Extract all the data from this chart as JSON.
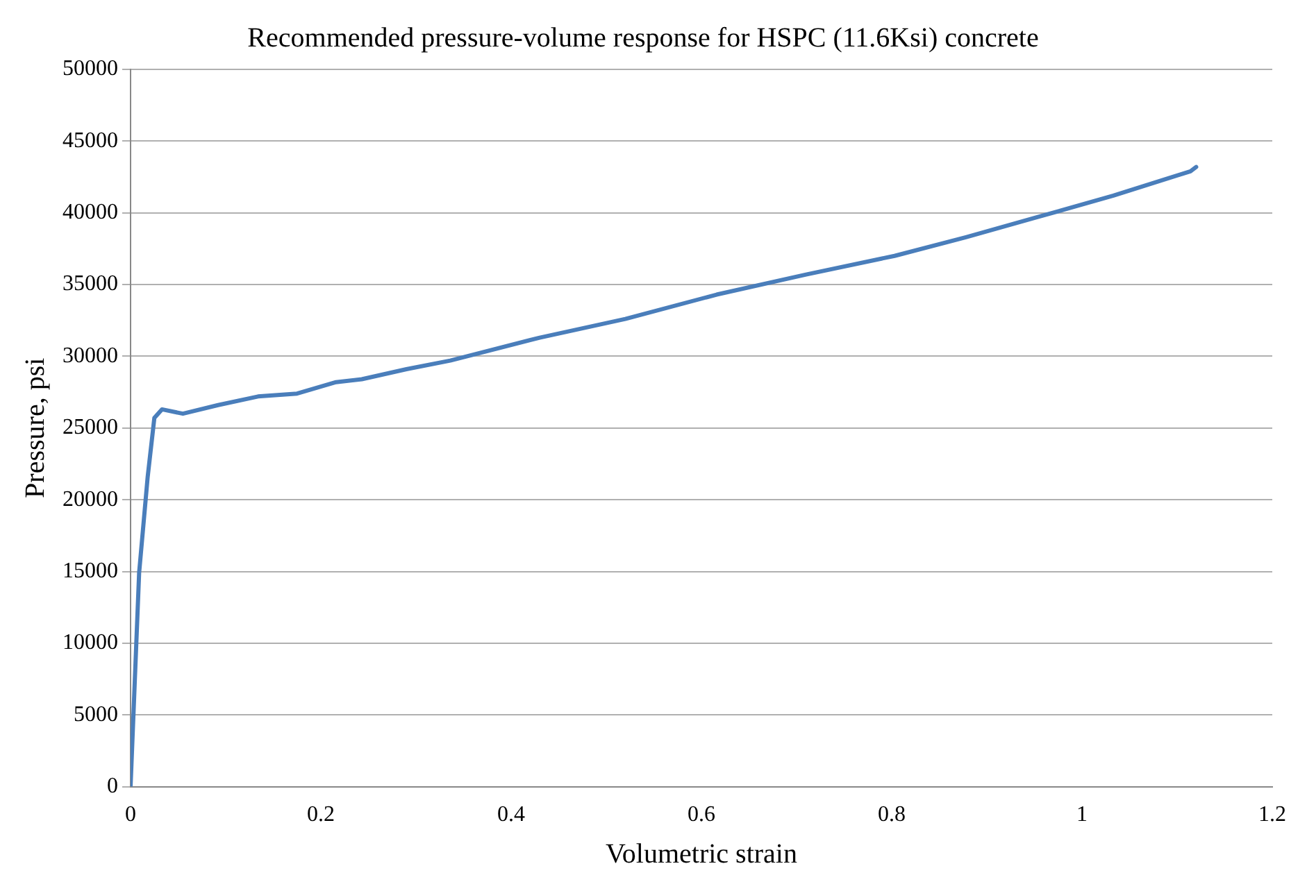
{
  "chart_data": {
    "type": "line",
    "title": "Recommended pressure-volume response for HSPC (11.6Ksi) concrete",
    "xlabel": "Volumetric strain",
    "ylabel": "Pressure, psi",
    "series": [
      {
        "color": "#4a7ebb",
        "x": [
          0,
          0.009,
          0.018,
          0.025,
          0.033,
          0.055,
          0.092,
          0.134,
          0.175,
          0.216,
          0.243,
          0.29,
          0.336,
          0.43,
          0.52,
          0.616,
          0.71,
          0.803,
          0.878,
          0.953,
          1.033,
          1.114,
          1.12
        ],
        "values": [
          0,
          14900,
          21600,
          25700,
          26300,
          26000,
          26600,
          27200,
          27400,
          28200,
          28400,
          29100,
          29700,
          31300,
          32600,
          34300,
          35700,
          37000,
          38300,
          39700,
          41200,
          42900,
          43200
        ]
      }
    ],
    "xlim": [
      0,
      1.2
    ],
    "xticks": [
      0,
      0.2,
      0.4,
      0.6,
      0.8,
      1,
      1.2
    ],
    "ylim": [
      0,
      50000
    ],
    "yticks": [
      0,
      5000,
      10000,
      15000,
      20000,
      25000,
      30000,
      35000,
      40000,
      45000,
      50000
    ],
    "grid": "y",
    "legend": false,
    "marker": "none",
    "line_style": "solid"
  }
}
